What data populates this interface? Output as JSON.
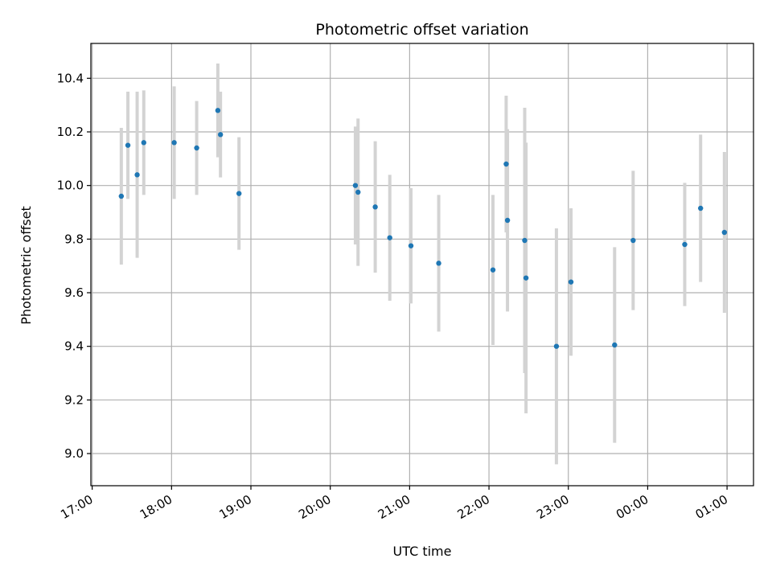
{
  "chart_data": {
    "type": "scatter",
    "title": "Photometric offset variation",
    "xlabel": "UTC time",
    "ylabel": "Photometric offset",
    "x_tick_labels": [
      "17:00",
      "18:00",
      "19:00",
      "20:00",
      "21:00",
      "22:00",
      "23:00",
      "00:00",
      "01:00"
    ],
    "x_tick_times": [
      "17:00",
      "18:00",
      "19:00",
      "20:00",
      "21:00",
      "22:00",
      "23:00",
      "00:00",
      "01:00"
    ],
    "y_ticks": [
      9.0,
      9.2,
      9.4,
      9.6,
      9.8,
      10.0,
      10.2,
      10.4
    ],
    "xlim": [
      "16:59",
      "01:20"
    ],
    "ylim": [
      8.88,
      10.53
    ],
    "grid": true,
    "colors": {
      "point": "#1f77b4",
      "errorbar": "#d3d3d3",
      "grid": "#b0b0b0"
    },
    "points": [
      {
        "time": "17:22",
        "y": 9.96,
        "yerr": 0.255
      },
      {
        "time": "17:27",
        "y": 10.15,
        "yerr": 0.2
      },
      {
        "time": "17:34",
        "y": 10.04,
        "yerr": 0.31
      },
      {
        "time": "17:39",
        "y": 10.16,
        "yerr": 0.195
      },
      {
        "time": "18:02",
        "y": 10.16,
        "yerr": 0.21
      },
      {
        "time": "18:19",
        "y": 10.14,
        "yerr": 0.175
      },
      {
        "time": "18:35",
        "y": 10.28,
        "yerr": 0.175
      },
      {
        "time": "18:37",
        "y": 10.19,
        "yerr": 0.16
      },
      {
        "time": "18:51",
        "y": 9.97,
        "yerr": 0.21
      },
      {
        "time": "20:19",
        "y": 10.0,
        "yerr": 0.22
      },
      {
        "time": "20:21",
        "y": 9.975,
        "yerr": 0.275
      },
      {
        "time": "20:34",
        "y": 9.92,
        "yerr": 0.245
      },
      {
        "time": "20:45",
        "y": 9.805,
        "yerr": 0.235
      },
      {
        "time": "21:01",
        "y": 9.775,
        "yerr": 0.215
      },
      {
        "time": "21:22",
        "y": 9.71,
        "yerr": 0.255
      },
      {
        "time": "22:03",
        "y": 9.685,
        "yerr": 0.28
      },
      {
        "time": "22:13",
        "y": 10.08,
        "yerr": 0.255
      },
      {
        "time": "22:14",
        "y": 9.87,
        "yerr": 0.34
      },
      {
        "time": "22:27",
        "y": 9.795,
        "yerr": 0.495
      },
      {
        "time": "22:28",
        "y": 9.655,
        "yerr": 0.505
      },
      {
        "time": "22:51",
        "y": 9.4,
        "yerr": 0.44
      },
      {
        "time": "23:02",
        "y": 9.64,
        "yerr": 0.275
      },
      {
        "time": "23:35",
        "y": 9.405,
        "yerr": 0.365
      },
      {
        "time": "23:49",
        "y": 9.795,
        "yerr": 0.26
      },
      {
        "time": "00:28",
        "y": 9.78,
        "yerr": 0.23
      },
      {
        "time": "00:40",
        "y": 9.915,
        "yerr": 0.275
      },
      {
        "time": "00:58",
        "y": 9.825,
        "yerr": 0.3
      }
    ]
  }
}
